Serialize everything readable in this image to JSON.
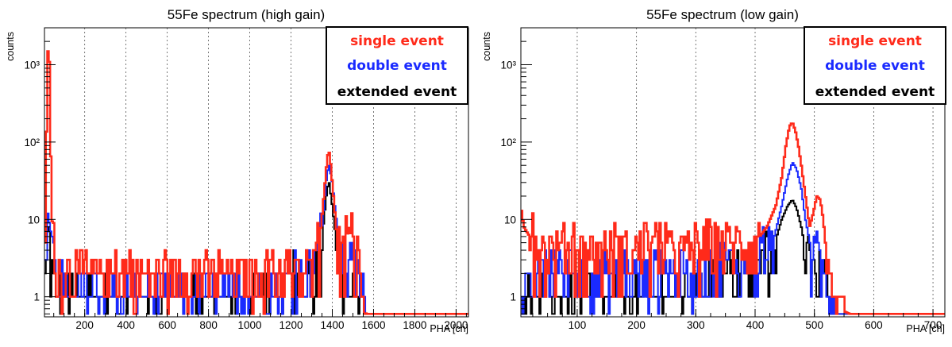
{
  "chart_data": [
    {
      "type": "line",
      "title": "55Fe spectrum (high gain)",
      "xlabel": "PHA [ch]",
      "ylabel": "counts",
      "x_ticks": [
        200,
        400,
        600,
        800,
        1000,
        1200,
        1400,
        1600,
        1800,
        2000
      ],
      "x_tick_labels": [
        "200",
        "400",
        "600",
        "800",
        "1000",
        "1200",
        "1400",
        "1600",
        "1800",
        "2000"
      ],
      "y_scale": "log",
      "y_ticks": [
        1,
        10,
        100,
        1000
      ],
      "y_tick_labels": [
        "1",
        "10",
        "10²",
        "10³"
      ],
      "xlim": [
        5,
        2060
      ],
      "ylim": [
        0.55,
        3000
      ],
      "grid": "vertical",
      "legend_position": "top-right",
      "series": [
        {
          "name": "single event",
          "color": "#ff2a1a",
          "x": [
            5,
            10,
            15,
            20,
            25,
            28,
            32,
            36,
            42,
            50,
            60,
            80,
            120,
            300,
            600,
            900,
            1200,
            1300,
            1320,
            1340,
            1355,
            1365,
            1375,
            1383,
            1390,
            1400,
            1410,
            1425,
            1440,
            1460,
            1480,
            1500,
            1515,
            1530,
            1540,
            1550,
            1565,
            1600,
            1800,
            2060
          ],
          "y": [
            1,
            8,
            120,
            1200,
            2000,
            1500,
            400,
            60,
            10,
            5,
            3,
            2,
            2,
            2,
            2,
            2,
            2,
            2,
            3,
            6,
            15,
            30,
            60,
            80,
            60,
            30,
            15,
            5,
            3,
            4,
            8,
            5,
            4,
            2,
            1,
            0.7,
            0.6,
            0.6,
            0.6,
            0.6
          ]
        },
        {
          "name": "double event",
          "color": "#1a2aff",
          "x": [
            5,
            15,
            22,
            28,
            35,
            45,
            60,
            100,
            300,
            700,
            1000,
            1300,
            1340,
            1360,
            1375,
            1385,
            1400,
            1420,
            1440,
            1480,
            1500,
            1520,
            1540,
            1560,
            1600,
            2060
          ],
          "y": [
            1,
            3,
            12,
            10,
            5,
            3,
            2,
            1,
            1,
            1,
            1,
            2,
            4,
            15,
            40,
            50,
            30,
            10,
            3,
            2,
            3,
            2,
            1,
            0.6,
            0.6,
            0.6
          ]
        },
        {
          "name": "extended event",
          "color": "#000000",
          "x": [
            5,
            15,
            22,
            28,
            35,
            45,
            60,
            100,
            300,
            700,
            1000,
            1300,
            1340,
            1360,
            1375,
            1385,
            1400,
            1420,
            1440,
            1480,
            1500,
            1520,
            1540,
            1560,
            1600,
            2060
          ],
          "y": [
            1,
            2,
            8,
            6,
            3,
            2,
            1,
            1,
            1,
            1,
            1,
            2,
            3,
            10,
            25,
            30,
            15,
            5,
            2,
            1,
            1,
            1,
            0.8,
            0.6,
            0.6,
            0.6
          ]
        }
      ]
    },
    {
      "type": "line",
      "title": "55Fe spectrum (low gain)",
      "xlabel": "PHA [ch]",
      "ylabel": "counts",
      "x_ticks": [
        100,
        200,
        300,
        400,
        500,
        600,
        700
      ],
      "x_tick_labels": [
        "100",
        "200",
        "300",
        "400",
        "500",
        "600",
        "700"
      ],
      "y_scale": "log",
      "y_ticks": [
        1,
        10,
        100,
        1000
      ],
      "y_tick_labels": [
        "1",
        "10",
        "10²",
        "10³"
      ],
      "xlim": [
        5,
        720
      ],
      "ylim": [
        0.55,
        3000
      ],
      "grid": "vertical",
      "legend_position": "top-right",
      "series": [
        {
          "name": "single event",
          "color": "#ff2a1a",
          "x": [
            5,
            10,
            20,
            30,
            50,
            80,
            120,
            150,
            200,
            250,
            300,
            330,
            360,
            400,
            420,
            435,
            445,
            452,
            458,
            463,
            468,
            473,
            478,
            485,
            492,
            498,
            504,
            510,
            515,
            520,
            528,
            540,
            560,
            720
          ],
          "y": [
            15,
            8,
            6,
            5,
            4,
            4,
            4,
            4,
            4,
            4,
            4,
            5,
            5,
            5,
            8,
            15,
            35,
            90,
            160,
            180,
            140,
            90,
            50,
            20,
            8,
            12,
            20,
            18,
            10,
            4,
            1.5,
            0.7,
            0.6,
            0.6
          ]
        },
        {
          "name": "double event",
          "color": "#1a2aff",
          "x": [
            5,
            40,
            80,
            150,
            200,
            250,
            300,
            330,
            360,
            400,
            430,
            445,
            455,
            463,
            470,
            478,
            485,
            495,
            505,
            515,
            525,
            540,
            560,
            720
          ],
          "y": [
            0.7,
            2,
            2,
            2,
            2,
            2,
            2,
            3,
            3,
            3,
            5,
            15,
            35,
            55,
            45,
            25,
            10,
            4,
            3,
            2,
            1,
            0.6,
            0.6,
            0.6
          ]
        },
        {
          "name": "extended event",
          "color": "#000000",
          "x": [
            5,
            40,
            80,
            150,
            200,
            250,
            300,
            330,
            360,
            400,
            430,
            445,
            455,
            463,
            470,
            478,
            485,
            495,
            505,
            515,
            525,
            540,
            560,
            720
          ],
          "y": [
            0.7,
            1,
            1,
            1,
            1,
            1,
            1,
            2,
            2,
            2,
            4,
            10,
            15,
            18,
            14,
            8,
            4,
            2,
            2,
            1.5,
            1,
            0.6,
            0.6,
            0.6
          ]
        }
      ]
    }
  ]
}
